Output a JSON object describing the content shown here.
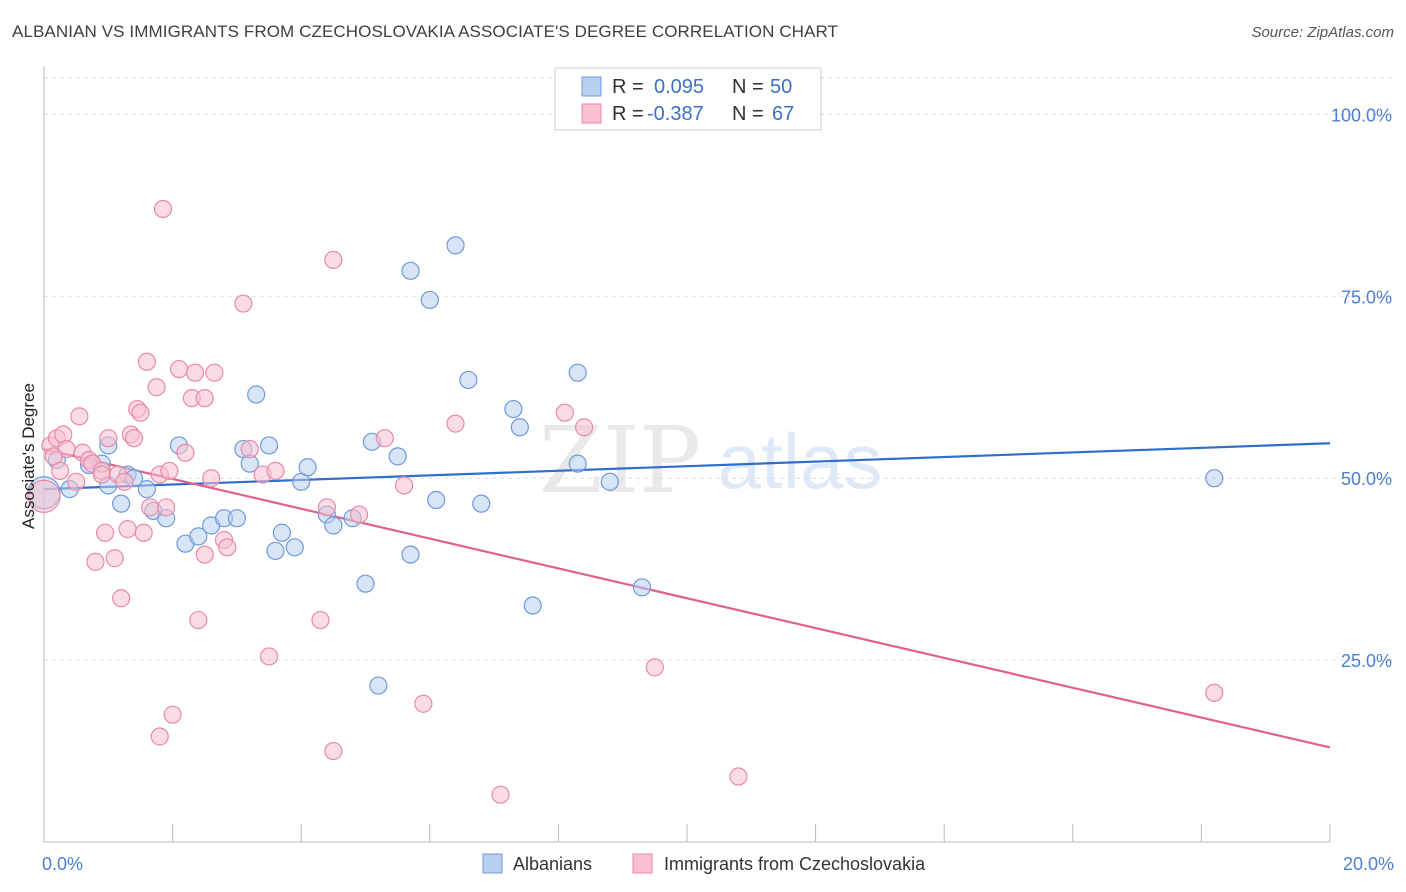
{
  "title": "ALBANIAN VS IMMIGRANTS FROM CZECHOSLOVAKIA ASSOCIATE'S DEGREE CORRELATION CHART",
  "source": "Source: ZipAtlas.com",
  "watermark": {
    "zip": "ZIP",
    "atlas": "atlas"
  },
  "colors": {
    "blue_fill": "#b8d0f0",
    "blue_stroke": "#6f9ad8",
    "blue_line": "#2f6fcc",
    "pink_fill": "#f8c0d0",
    "pink_stroke": "#e88aa8",
    "pink_line": "#e06090",
    "axis_text": "#4a7fd0",
    "grid": "#dddddd"
  },
  "legend": {
    "rows": [
      {
        "r_label": "R = ",
        "r_value": "0.095",
        "n_label": "N = ",
        "n_value": "50"
      },
      {
        "r_label": "R = ",
        "r_value": "-0.387",
        "n_label": "N = ",
        "n_value": "67"
      }
    ]
  },
  "chart_data": {
    "type": "scatter",
    "title": "ALBANIAN VS IMMIGRANTS FROM CZECHOSLOVAKIA ASSOCIATE'S DEGREE CORRELATION CHART",
    "xlabel": "",
    "ylabel": "Associate's Degree",
    "xlim": [
      0,
      20
    ],
    "ylim": [
      0,
      105
    ],
    "x_ticks": [
      0,
      20
    ],
    "x_tick_labels": [
      "0.0%",
      "20.0%"
    ],
    "y_ticks": [
      25,
      50,
      75,
      100
    ],
    "y_tick_labels": [
      "25.0%",
      "50.0%",
      "75.0%",
      "100.0%"
    ],
    "grid": true,
    "series": [
      {
        "name": "Albanians",
        "color": "blue",
        "trend": {
          "x": [
            0,
            20
          ],
          "y": [
            48.5,
            54.8
          ]
        },
        "points": [
          [
            0.0,
            48.0
          ],
          [
            0.2,
            52.5
          ],
          [
            0.4,
            48.5
          ],
          [
            0.7,
            51.8
          ],
          [
            0.9,
            52.0
          ],
          [
            1.2,
            46.5
          ],
          [
            1.0,
            54.5
          ],
          [
            1.0,
            49.0
          ],
          [
            1.3,
            50.5
          ],
          [
            1.4,
            50.0
          ],
          [
            1.6,
            48.5
          ],
          [
            1.7,
            45.5
          ],
          [
            1.9,
            44.5
          ],
          [
            2.1,
            54.5
          ],
          [
            2.2,
            41.0
          ],
          [
            2.4,
            42.0
          ],
          [
            2.6,
            43.5
          ],
          [
            2.8,
            44.5
          ],
          [
            3.0,
            44.5
          ],
          [
            3.1,
            54.0
          ],
          [
            3.2,
            52.0
          ],
          [
            3.3,
            61.5
          ],
          [
            3.5,
            54.5
          ],
          [
            3.6,
            40.0
          ],
          [
            3.7,
            42.5
          ],
          [
            3.9,
            40.5
          ],
          [
            4.0,
            49.5
          ],
          [
            4.1,
            51.5
          ],
          [
            4.4,
            45.0
          ],
          [
            4.5,
            43.5
          ],
          [
            4.8,
            44.5
          ],
          [
            5.0,
            35.5
          ],
          [
            5.1,
            55.0
          ],
          [
            5.2,
            21.5
          ],
          [
            5.5,
            53.0
          ],
          [
            5.7,
            78.5
          ],
          [
            5.7,
            39.5
          ],
          [
            6.0,
            74.5
          ],
          [
            6.1,
            47.0
          ],
          [
            6.4,
            82.0
          ],
          [
            6.6,
            63.5
          ],
          [
            6.8,
            46.5
          ],
          [
            7.3,
            59.5
          ],
          [
            7.4,
            57.0
          ],
          [
            7.6,
            32.5
          ],
          [
            8.3,
            64.5
          ],
          [
            8.3,
            52.0
          ],
          [
            8.8,
            49.5
          ],
          [
            9.3,
            35.0
          ],
          [
            18.2,
            50.0
          ]
        ]
      },
      {
        "name": "Immigrants from Czechoslovakia",
        "color": "pink",
        "trend": {
          "x": [
            0,
            20
          ],
          "y": [
            54.0,
            13.0
          ]
        },
        "points": [
          [
            0.0,
            47.5
          ],
          [
            0.1,
            54.5
          ],
          [
            0.2,
            55.5
          ],
          [
            0.3,
            56.0
          ],
          [
            0.35,
            54.0
          ],
          [
            0.5,
            49.5
          ],
          [
            0.55,
            58.5
          ],
          [
            0.6,
            53.5
          ],
          [
            0.7,
            52.5
          ],
          [
            0.75,
            52.0
          ],
          [
            0.8,
            38.5
          ],
          [
            0.9,
            51.0
          ],
          [
            0.9,
            50.5
          ],
          [
            0.95,
            42.5
          ],
          [
            1.0,
            55.5
          ],
          [
            1.1,
            39.0
          ],
          [
            1.15,
            50.5
          ],
          [
            1.2,
            33.5
          ],
          [
            1.25,
            49.5
          ],
          [
            1.3,
            43.0
          ],
          [
            1.35,
            56.0
          ],
          [
            1.4,
            55.5
          ],
          [
            1.45,
            59.5
          ],
          [
            1.5,
            59.0
          ],
          [
            1.55,
            42.5
          ],
          [
            1.6,
            66.0
          ],
          [
            1.65,
            46.0
          ],
          [
            1.75,
            62.5
          ],
          [
            1.8,
            50.5
          ],
          [
            1.85,
            87.0
          ],
          [
            1.9,
            46.0
          ],
          [
            1.95,
            51.0
          ],
          [
            2.0,
            17.5
          ],
          [
            1.8,
            14.5
          ],
          [
            2.1,
            65.0
          ],
          [
            2.2,
            53.5
          ],
          [
            2.3,
            61.0
          ],
          [
            2.35,
            64.5
          ],
          [
            2.4,
            30.5
          ],
          [
            2.5,
            39.5
          ],
          [
            2.5,
            61.0
          ],
          [
            2.6,
            50.0
          ],
          [
            2.65,
            64.5
          ],
          [
            2.8,
            41.5
          ],
          [
            2.85,
            40.5
          ],
          [
            3.1,
            74.0
          ],
          [
            3.2,
            54.0
          ],
          [
            3.4,
            50.5
          ],
          [
            3.5,
            25.5
          ],
          [
            3.6,
            51.0
          ],
          [
            4.3,
            30.5
          ],
          [
            4.4,
            46.0
          ],
          [
            4.5,
            12.5
          ],
          [
            4.5,
            80.0
          ],
          [
            4.9,
            45.0
          ],
          [
            5.3,
            55.5
          ],
          [
            5.6,
            49.0
          ],
          [
            5.9,
            19.0
          ],
          [
            6.4,
            57.5
          ],
          [
            7.1,
            6.5
          ],
          [
            8.1,
            59.0
          ],
          [
            8.4,
            57.0
          ],
          [
            9.5,
            24.0
          ],
          [
            10.8,
            9.0
          ],
          [
            18.2,
            20.5
          ],
          [
            0.15,
            53.0
          ],
          [
            0.25,
            51.0
          ]
        ]
      }
    ]
  },
  "bottom_legend": {
    "items": [
      {
        "label": "Albanians",
        "color": "blue"
      },
      {
        "label": "Immigrants from Czechoslovakia",
        "color": "pink"
      }
    ]
  }
}
